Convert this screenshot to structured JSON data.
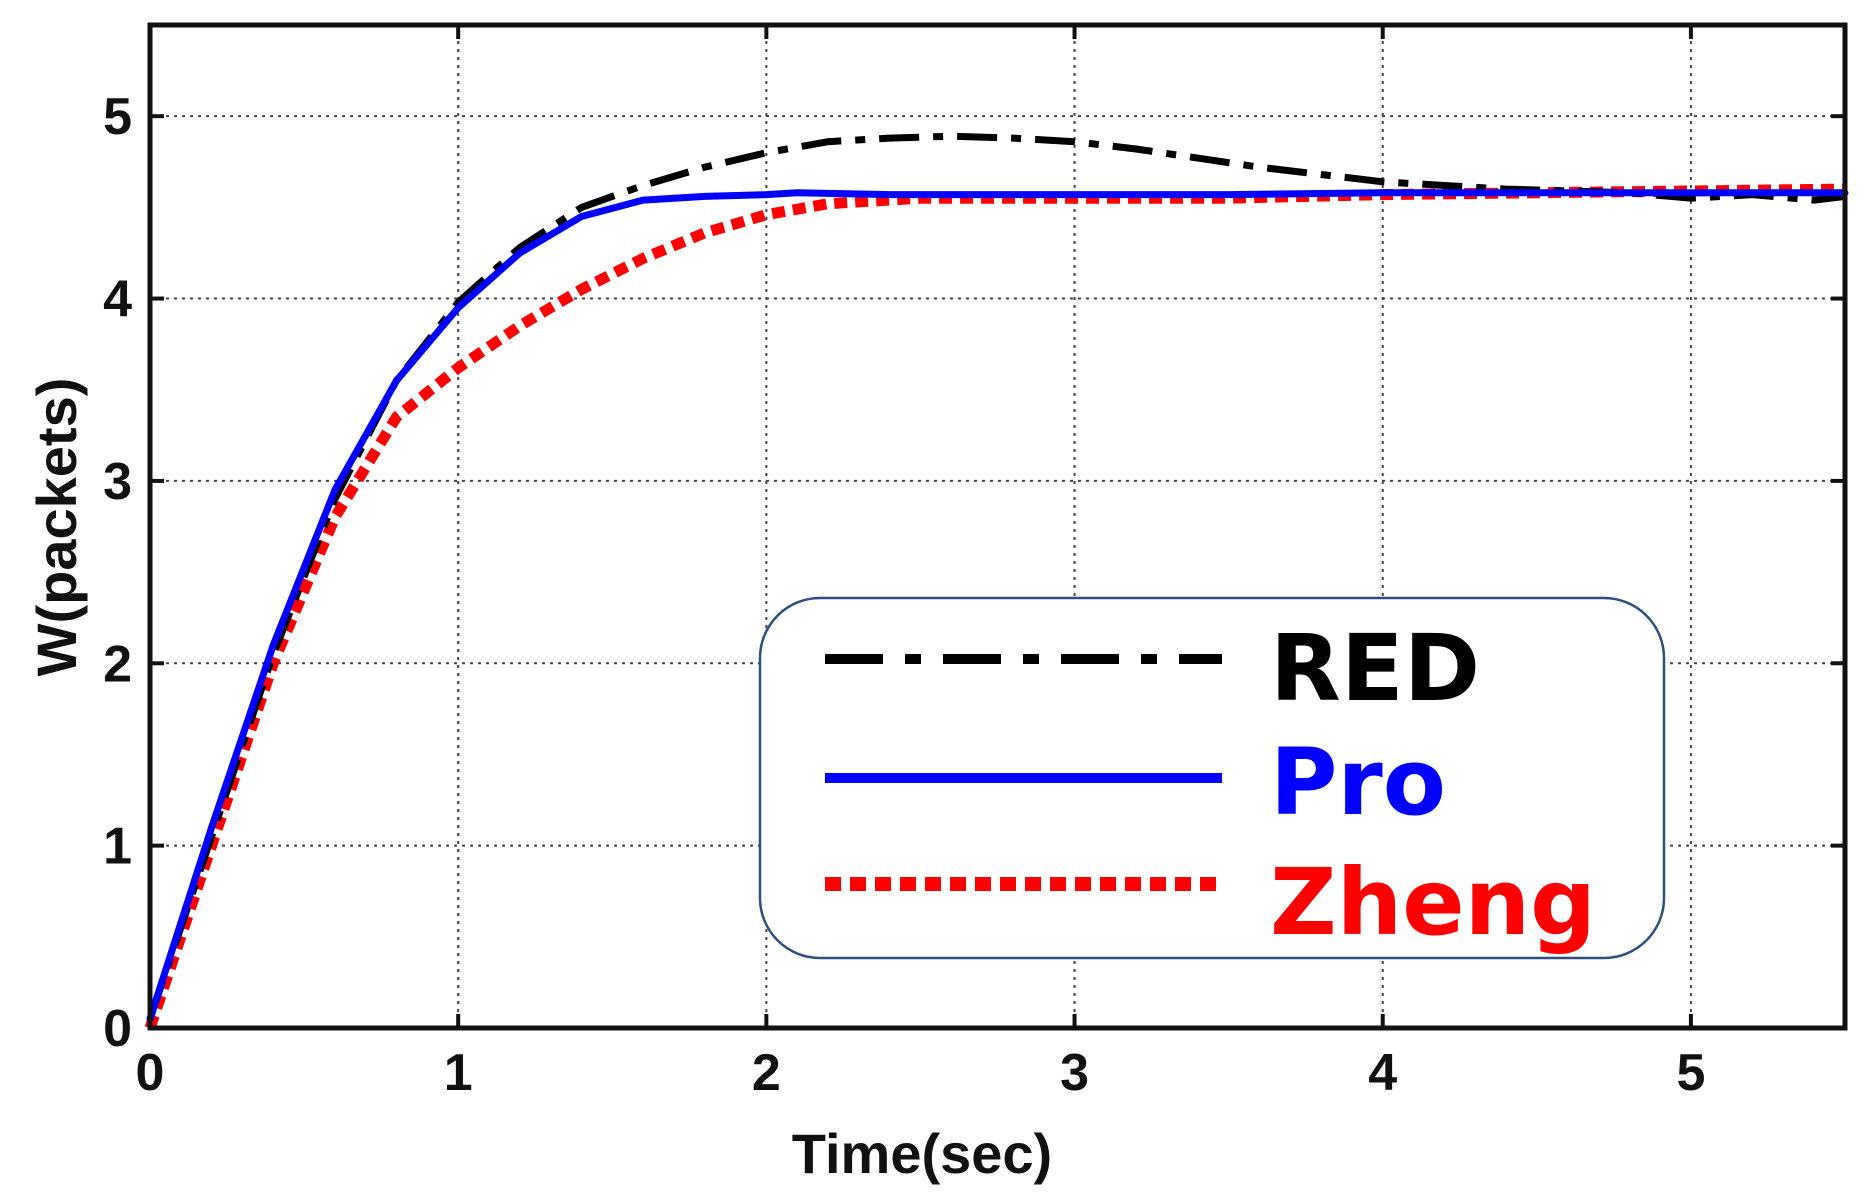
{
  "chart_data": {
    "type": "line",
    "title": "",
    "xlabel": "Time(sec)",
    "ylabel": "W(packets)",
    "xlim": [
      0,
      5.5
    ],
    "ylim": [
      0,
      5.5
    ],
    "grid": true,
    "legend_position": "bottom-right",
    "xticks": [
      "0",
      "1",
      "2",
      "3",
      "4",
      "5"
    ],
    "yticks": [
      "0",
      "1",
      "2",
      "3",
      "4",
      "5"
    ],
    "series": [
      {
        "name": "RED",
        "color": "#000000",
        "style": "dash-dot",
        "x": [
          0,
          0.2,
          0.4,
          0.6,
          0.8,
          1.0,
          1.2,
          1.4,
          1.6,
          1.8,
          2.0,
          2.2,
          2.4,
          2.6,
          2.8,
          3.0,
          3.2,
          3.4,
          3.6,
          3.8,
          4.0,
          4.2,
          4.4,
          4.6,
          4.8,
          5.0,
          5.2,
          5.4,
          5.5
        ],
        "y": [
          0.05,
          1.05,
          2.05,
          2.9,
          3.55,
          3.98,
          4.28,
          4.5,
          4.62,
          4.72,
          4.8,
          4.86,
          4.88,
          4.89,
          4.88,
          4.86,
          4.82,
          4.77,
          4.72,
          4.68,
          4.64,
          4.62,
          4.6,
          4.59,
          4.58,
          4.55,
          4.57,
          4.54,
          4.56
        ]
      },
      {
        "name": "Pro",
        "color": "#0000ff",
        "style": "solid",
        "x": [
          0,
          0.2,
          0.4,
          0.6,
          0.8,
          1.0,
          1.2,
          1.4,
          1.6,
          1.8,
          2.0,
          2.1,
          2.4,
          3.0,
          3.5,
          4.0,
          4.5,
          5.0,
          5.5
        ],
        "y": [
          0.05,
          1.1,
          2.1,
          2.95,
          3.55,
          3.95,
          4.25,
          4.45,
          4.54,
          4.56,
          4.57,
          4.58,
          4.57,
          4.57,
          4.57,
          4.58,
          4.58,
          4.58,
          4.58
        ]
      },
      {
        "name": "Zheng",
        "color": "#ff0000",
        "style": "dotted",
        "x": [
          0,
          0.2,
          0.4,
          0.6,
          0.8,
          1.0,
          1.2,
          1.4,
          1.6,
          1.8,
          2.0,
          2.2,
          2.5,
          3.0,
          3.5,
          4.0,
          4.5,
          5.0,
          5.5
        ],
        "y": [
          0.0,
          1.0,
          2.0,
          2.8,
          3.35,
          3.62,
          3.85,
          4.05,
          4.22,
          4.36,
          4.46,
          4.52,
          4.55,
          4.55,
          4.55,
          4.57,
          4.58,
          4.59,
          4.6
        ]
      }
    ]
  }
}
